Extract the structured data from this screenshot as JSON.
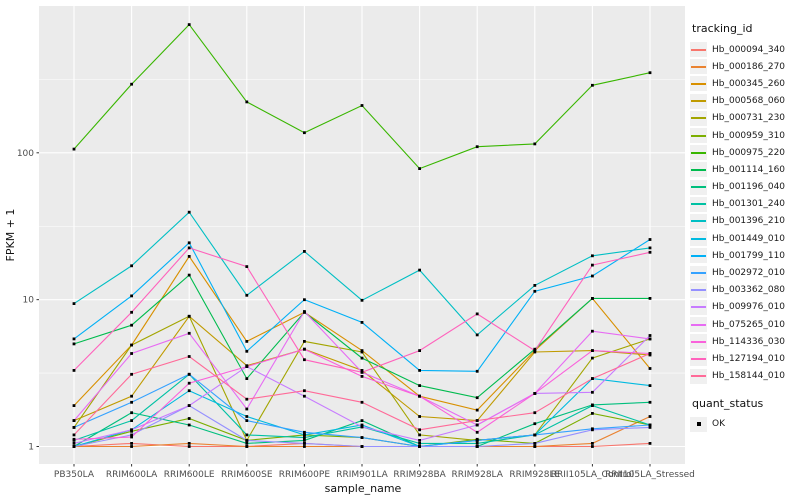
{
  "colors": {
    "panel_bg": "#ebebeb",
    "grid": "#ffffff",
    "point": "#000000",
    "tick_text": "#4d4d4d",
    "axis_title_text": "#111111"
  },
  "chart_data": {
    "type": "line",
    "title": "",
    "xlabel": "sample_name",
    "ylabel": "FPKM + 1",
    "y_scale": "log10",
    "ylim": [
      0.72,
      1040
    ],
    "y_ticks": [
      1,
      10,
      100
    ],
    "y_minor_ticks": [
      3.162,
      31.62,
      316.2
    ],
    "grid": "on",
    "legend_position": "right",
    "legend_series_title": "tracking_id",
    "legend_status_title": "quant_status",
    "status_items": [
      "OK"
    ],
    "categories": [
      "PB350LA",
      "RRIM600LA",
      "RRIM600LE",
      "RRIM600SE",
      "RRIM600PE",
      "RRIM901LA",
      "RRIM928BA",
      "RRIM928LA",
      "RRIM928LE",
      "RRII105LA_Control",
      "RRII105LA_Stressed"
    ],
    "series": [
      {
        "name": "Hb_000094_340",
        "color": "#F8766D",
        "values": [
          1.0,
          1.05,
          1.0,
          1.0,
          1.05,
          1.0,
          1.0,
          1.0,
          1.0,
          1.0,
          1.05
        ]
      },
      {
        "name": "Hb_000186_270",
        "color": "#EA8331",
        "values": [
          1.0,
          1.0,
          1.05,
          1.0,
          1.0,
          1.0,
          1.0,
          1.0,
          1.0,
          1.05,
          1.6
        ]
      },
      {
        "name": "Hb_000345_260",
        "color": "#D89000",
        "values": [
          1.9,
          4.9,
          19.7,
          5.2,
          8.2,
          4.5,
          2.2,
          1.77,
          4.5,
          10.2,
          3.4
        ]
      },
      {
        "name": "Hb_000568_060",
        "color": "#C09B00",
        "values": [
          1.5,
          2.2,
          7.7,
          3.55,
          4.6,
          3.3,
          1.6,
          1.5,
          4.4,
          4.5,
          4.2
        ]
      },
      {
        "name": "Hb_000731_230",
        "color": "#A3A500",
        "values": [
          1.35,
          4.9,
          7.7,
          1.1,
          5.2,
          4.4,
          1.2,
          1.1,
          1.2,
          4.0,
          5.4
        ]
      },
      {
        "name": "Hb_000959_310",
        "color": "#7CAE00",
        "values": [
          1.0,
          1.27,
          1.55,
          1.1,
          1.2,
          1.15,
          1.0,
          1.12,
          1.05,
          1.68,
          1.4
        ]
      },
      {
        "name": "Hb_000975_220",
        "color": "#39B600",
        "values": [
          106,
          293,
          747,
          222,
          137,
          210,
          78,
          110,
          115,
          288,
          351
        ]
      },
      {
        "name": "Hb_001114_160",
        "color": "#00BB4E",
        "values": [
          5.0,
          6.7,
          14.7,
          2.9,
          8.2,
          4.0,
          2.6,
          2.15,
          4.6,
          10.2,
          10.2
        ]
      },
      {
        "name": "Hb_001196_040",
        "color": "#00BF7D",
        "values": [
          1.0,
          1.7,
          1.4,
          1.05,
          1.1,
          1.5,
          1.0,
          1.0,
          1.43,
          1.92,
          2.0
        ]
      },
      {
        "name": "Hb_001301_240",
        "color": "#00C1A3",
        "values": [
          1.1,
          1.5,
          3.1,
          1.2,
          1.15,
          1.36,
          1.05,
          1.05,
          1.2,
          1.9,
          1.4
        ]
      },
      {
        "name": "Hb_001396_210",
        "color": "#00BFC4",
        "values": [
          9.4,
          17.0,
          39.4,
          10.7,
          21.3,
          9.9,
          15.9,
          5.75,
          12.5,
          19.9,
          22.5
        ]
      },
      {
        "name": "Hb_001449_010",
        "color": "#00BAE0",
        "values": [
          1.0,
          1.3,
          2.4,
          1.6,
          1.2,
          1.4,
          1.0,
          1.1,
          1.2,
          2.9,
          2.6
        ]
      },
      {
        "name": "Hb_001799_110",
        "color": "#00B0F6",
        "values": [
          5.4,
          10.6,
          24.4,
          4.45,
          10.0,
          7.0,
          3.3,
          3.25,
          11.4,
          14.5,
          25.7
        ]
      },
      {
        "name": "Hb_002972_010",
        "color": "#35A2FF",
        "values": [
          1.35,
          2.0,
          3.1,
          1.5,
          1.25,
          1.15,
          1.0,
          1.1,
          1.2,
          1.32,
          1.4
        ]
      },
      {
        "name": "Hb_003362_080",
        "color": "#9590FF",
        "values": [
          1.0,
          1.2,
          1.9,
          1.1,
          1.05,
          1.0,
          1.0,
          1.0,
          1.05,
          1.3,
          1.35
        ]
      },
      {
        "name": "Hb_009976_010",
        "color": "#C77CFF",
        "values": [
          1.05,
          1.3,
          1.9,
          3.5,
          2.2,
          1.36,
          1.1,
          1.4,
          2.3,
          2.34,
          5.7
        ]
      },
      {
        "name": "Hb_075265_010",
        "color": "#E76BF3",
        "values": [
          1.5,
          4.3,
          5.9,
          1.8,
          8.3,
          3.2,
          2.2,
          1.4,
          2.3,
          6.1,
          5.4
        ]
      },
      {
        "name": "Hb_114336_030",
        "color": "#FA62DB",
        "values": [
          1.12,
          1.16,
          2.7,
          3.5,
          4.6,
          3.0,
          2.2,
          1.25,
          2.3,
          4.5,
          4.3
        ]
      },
      {
        "name": "Hb_127194_010",
        "color": "#FF62BC",
        "values": [
          3.3,
          8.2,
          22.5,
          16.8,
          3.9,
          3.2,
          4.5,
          8.0,
          4.5,
          17.2,
          21.0
        ]
      },
      {
        "name": "Hb_158144_010",
        "color": "#FF6A98",
        "values": [
          1.2,
          3.1,
          4.1,
          2.1,
          2.4,
          2.0,
          1.3,
          1.5,
          1.7,
          2.9,
          4.3
        ]
      }
    ]
  }
}
